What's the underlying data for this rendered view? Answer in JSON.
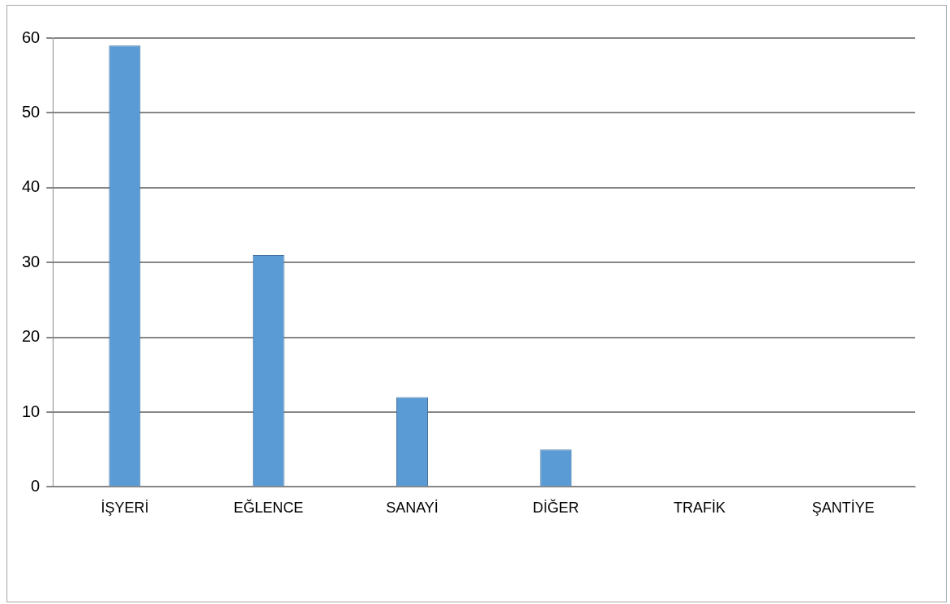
{
  "chart_data": {
    "type": "bar",
    "categories": [
      "İŞYERİ",
      "EĞLENCE",
      "SANAYİ",
      "DİĞER",
      "TRAFİK",
      "ŞANTİYE"
    ],
    "values": [
      59,
      31,
      12,
      5,
      0,
      0
    ],
    "color": "#5b9bd5",
    "ylim": [
      0,
      60
    ],
    "yticks": [
      0,
      10,
      20,
      30,
      40,
      50,
      60
    ],
    "grid": "y"
  }
}
